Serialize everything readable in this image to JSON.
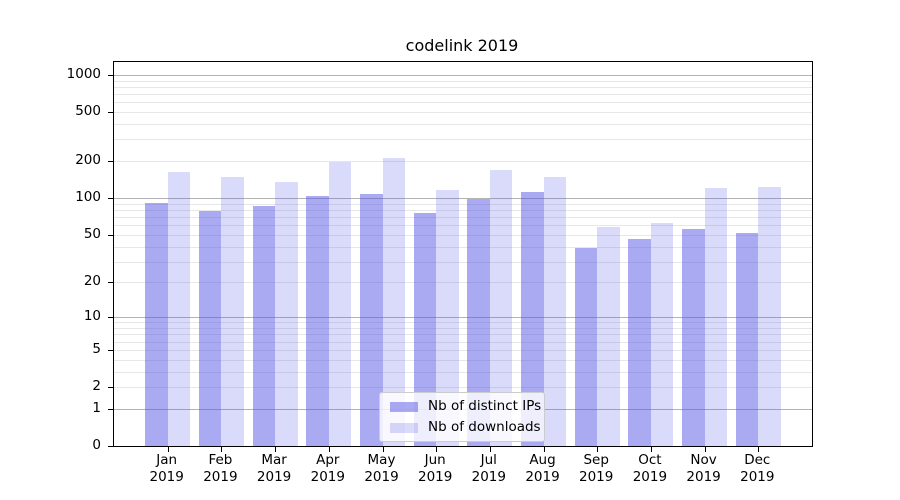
{
  "title": "codelink 2019",
  "chart_data": {
    "type": "bar",
    "title": "codelink 2019",
    "categories": [
      "Jan",
      "Feb",
      "Mar",
      "Apr",
      "May",
      "Jun",
      "Jul",
      "Aug",
      "Sep",
      "Oct",
      "Nov",
      "Dec"
    ],
    "year_label": "2019",
    "series": [
      {
        "name": "Nb of distinct IPs",
        "color": "rgba(85,85,230,0.5)",
        "values": [
          91,
          79,
          87,
          104,
          109,
          76,
          99,
          112,
          39,
          46,
          56,
          52
        ]
      },
      {
        "name": "Nb of downloads",
        "color": "rgba(85,85,230,0.22)",
        "values": [
          163,
          148,
          135,
          195,
          212,
          117,
          168,
          148,
          58,
          62,
          120,
          123
        ]
      }
    ],
    "yscale": "log1p",
    "y_ticks": [
      0,
      1,
      2,
      5,
      10,
      20,
      50,
      100,
      200,
      500,
      1000
    ],
    "ylim": [
      0,
      1270
    ],
    "grid": true,
    "legend_position": "lower center"
  },
  "colors": {
    "grid_major": "#b3b3b3",
    "grid_minor": "#e7e7e7",
    "axis": "#000000",
    "legend_border": "#cccccc",
    "legend_background": "rgba(255,255,255,0.8)"
  }
}
